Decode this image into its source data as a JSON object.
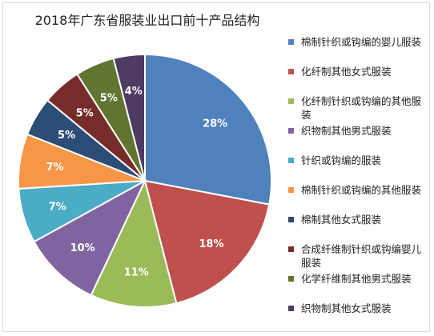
{
  "chart_data": {
    "type": "pie",
    "title": "2018年广东省服装业出口前十产品结构",
    "slices": [
      {
        "label": "棉制针织或钩编的婴儿服装",
        "value": 28,
        "display": "28%",
        "color": "#4F81BD"
      },
      {
        "label": "化纤制其他女式服装",
        "value": 18,
        "display": "18%",
        "color": "#C0504D"
      },
      {
        "label": "化纤制针织或钩编的其他服装",
        "value": 11,
        "display": "11%",
        "color": "#9BBB59"
      },
      {
        "label": "织物制其他男式服装",
        "value": 10,
        "display": "10%",
        "color": "#8064A2"
      },
      {
        "label": "针织或钩编的服装",
        "value": 7,
        "display": "7%",
        "color": "#4BACC6"
      },
      {
        "label": "棉制针织或钩编的其他服装",
        "value": 7,
        "display": "7%",
        "color": "#F79646"
      },
      {
        "label": "棉制其他女式服装",
        "value": 5,
        "display": "5%",
        "color": "#2C4D75"
      },
      {
        "label": "合成纤维制针织或钩编婴儿服装",
        "value": 5,
        "display": "5%",
        "color": "#772C2A"
      },
      {
        "label": "化学纤维制其他男式服装",
        "value": 5,
        "display": "5%",
        "color": "#5F7530"
      },
      {
        "label": "织物制其他女式服装",
        "value": 4,
        "display": "4%",
        "color": "#4D3B62"
      }
    ],
    "legend_position": "right"
  }
}
